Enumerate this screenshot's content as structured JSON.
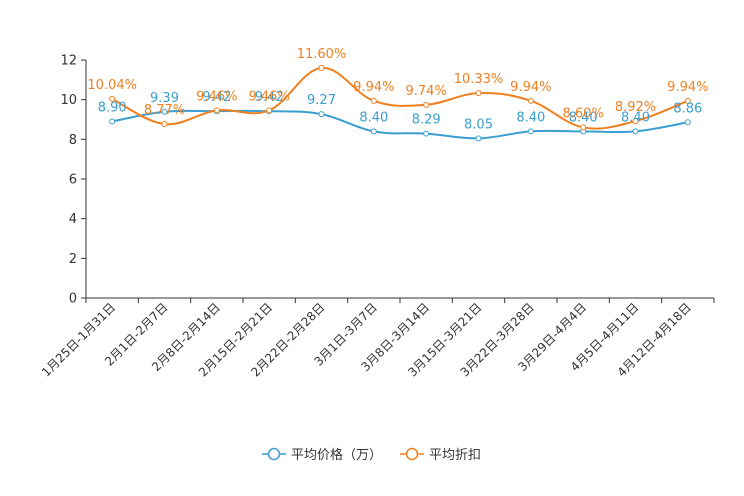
{
  "chart_data": {
    "type": "line",
    "title": "",
    "xlabel": "",
    "ylabel": "",
    "ylim": [
      0,
      12
    ],
    "yticks": [
      0,
      2,
      4,
      6,
      8,
      10,
      12
    ],
    "grid": false,
    "legend_position": "bottom",
    "categories": [
      "1月25日-1月31日",
      "2月1日-2月7日",
      "2月8日-2月14日",
      "2月15日-2月21日",
      "2月22日-2月28日",
      "3月1日-3月7日",
      "3月8日-3月14日",
      "3月15日-3月21日",
      "3月22日-3月28日",
      "3月29日-4月4日",
      "4月5日-4月11日",
      "4月12日-4月18日"
    ],
    "series": [
      {
        "name": "平均价格（万）",
        "color": "#3a9fd0",
        "values": [
          8.9,
          9.39,
          9.42,
          9.42,
          9.27,
          8.4,
          8.29,
          8.05,
          8.4,
          8.4,
          8.4,
          8.86
        ],
        "labels": [
          "8.90",
          "9.39",
          "9.42",
          "9.42",
          "9.27",
          "8.40",
          "8.29",
          "8.05",
          "8.40",
          "8.40",
          "8.40",
          "8.86"
        ]
      },
      {
        "name": "平均折扣",
        "color": "#f07f1f",
        "values": [
          10.04,
          8.77,
          9.46,
          9.46,
          11.6,
          9.94,
          9.74,
          10.33,
          9.94,
          8.6,
          8.92,
          9.94
        ],
        "labels": [
          "10.04%",
          "8.77%",
          "9.46%",
          "9.46%",
          "11.60%",
          "9.94%",
          "9.74%",
          "10.33%",
          "9.94%",
          "8.60%",
          "8.92%",
          "9.94%"
        ]
      }
    ]
  }
}
